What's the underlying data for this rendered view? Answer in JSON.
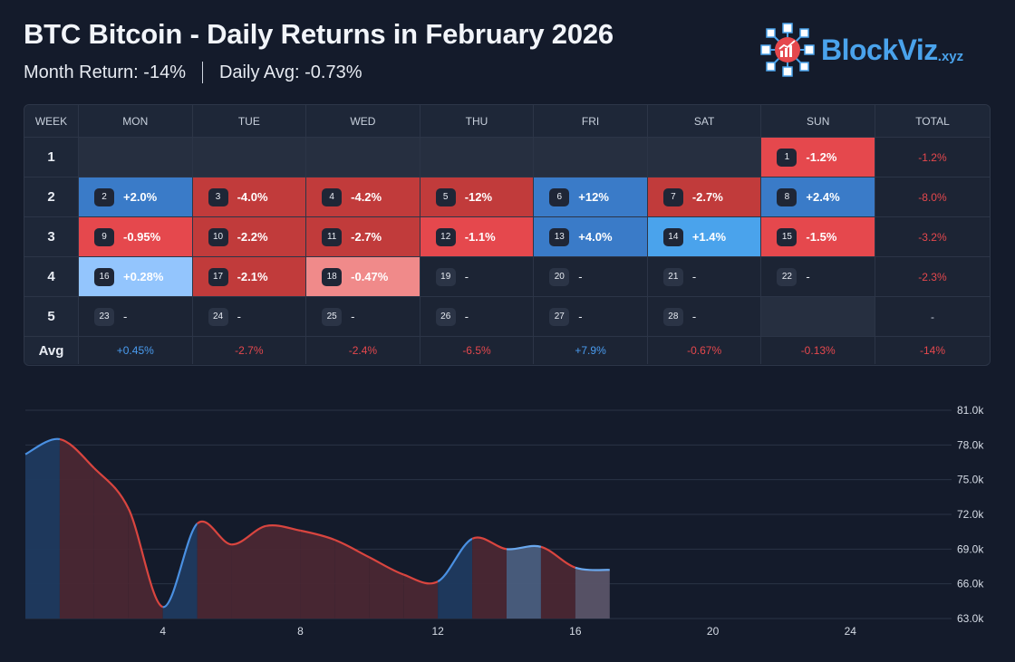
{
  "header": {
    "title": "BTC Bitcoin - Daily Returns in February 2026",
    "month_return": "Month Return: -14%",
    "daily_avg": "Daily Avg: -0.73%"
  },
  "logo": {
    "name": "BlockViz",
    "suffix": ".xyz",
    "icon": "cube-network-chart-icon"
  },
  "colors": {
    "strong_red": "#c13b3b",
    "red": "#e5484d",
    "light_red": "#f08a8a",
    "blue": "#3a7bc8",
    "light_blue": "#4aa3ec",
    "pale_blue": "#93c5fd",
    "positive_text": "#4a9cf0",
    "negative_text": "#e5484d",
    "background": "#141b2b"
  },
  "table": {
    "headers": [
      "WEEK",
      "MON",
      "TUE",
      "WED",
      "THU",
      "FRI",
      "SAT",
      "SUN",
      "TOTAL"
    ],
    "weeks": [
      {
        "label": "1",
        "total": "-1.2%",
        "total_sign": "neg",
        "days": [
          null,
          null,
          null,
          null,
          null,
          null,
          {
            "day": "1",
            "value": "-1.2%",
            "color": "red"
          }
        ]
      },
      {
        "label": "2",
        "total": "-8.0%",
        "total_sign": "neg",
        "days": [
          {
            "day": "2",
            "value": "+2.0%",
            "color": "blue"
          },
          {
            "day": "3",
            "value": "-4.0%",
            "color": "strong_red"
          },
          {
            "day": "4",
            "value": "-4.2%",
            "color": "strong_red"
          },
          {
            "day": "5",
            "value": "-12%",
            "color": "strong_red"
          },
          {
            "day": "6",
            "value": "+12%",
            "color": "blue"
          },
          {
            "day": "7",
            "value": "-2.7%",
            "color": "strong_red"
          },
          {
            "day": "8",
            "value": "+2.4%",
            "color": "blue"
          }
        ]
      },
      {
        "label": "3",
        "total": "-3.2%",
        "total_sign": "neg",
        "days": [
          {
            "day": "9",
            "value": "-0.95%",
            "color": "red"
          },
          {
            "day": "10",
            "value": "-2.2%",
            "color": "strong_red"
          },
          {
            "day": "11",
            "value": "-2.7%",
            "color": "strong_red"
          },
          {
            "day": "12",
            "value": "-1.1%",
            "color": "red"
          },
          {
            "day": "13",
            "value": "+4.0%",
            "color": "blue"
          },
          {
            "day": "14",
            "value": "+1.4%",
            "color": "light_blue"
          },
          {
            "day": "15",
            "value": "-1.5%",
            "color": "red"
          }
        ]
      },
      {
        "label": "4",
        "total": "-2.3%",
        "total_sign": "neg",
        "days": [
          {
            "day": "16",
            "value": "+0.28%",
            "color": "pale_blue"
          },
          {
            "day": "17",
            "value": "-2.1%",
            "color": "strong_red"
          },
          {
            "day": "18",
            "value": "-0.47%",
            "color": "light_red"
          },
          {
            "day": "19",
            "value": "-",
            "color": "none"
          },
          {
            "day": "20",
            "value": "-",
            "color": "none"
          },
          {
            "day": "21",
            "value": "-",
            "color": "none"
          },
          {
            "day": "22",
            "value": "-",
            "color": "none"
          }
        ]
      },
      {
        "label": "5",
        "total": "-",
        "total_sign": "none",
        "days": [
          {
            "day": "23",
            "value": "-",
            "color": "none"
          },
          {
            "day": "24",
            "value": "-",
            "color": "none"
          },
          {
            "day": "25",
            "value": "-",
            "color": "none"
          },
          {
            "day": "26",
            "value": "-",
            "color": "none"
          },
          {
            "day": "27",
            "value": "-",
            "color": "none"
          },
          {
            "day": "28",
            "value": "-",
            "color": "none"
          },
          null
        ]
      }
    ],
    "avg_row": {
      "label": "Avg",
      "values": [
        "+0.45%",
        "-2.7%",
        "-2.4%",
        "-6.5%",
        "+7.9%",
        "-0.67%",
        "-0.13%"
      ],
      "signs": [
        "pos",
        "neg",
        "neg",
        "neg",
        "pos",
        "neg",
        "neg"
      ],
      "total": "-14%"
    }
  },
  "chart_data": {
    "type": "area",
    "x_ticks": [
      "4",
      "8",
      "12",
      "16",
      "20",
      "24"
    ],
    "y_ticks": [
      "81.0k",
      "78.0k",
      "75.0k",
      "72.0k",
      "69.0k",
      "66.0k",
      "63.0k"
    ],
    "xlim": [
      0,
      28
    ],
    "ylim": [
      63000,
      81000
    ],
    "grid": true,
    "x": [
      0,
      1,
      2,
      3,
      4,
      5,
      6,
      7,
      8,
      9,
      10,
      11,
      12,
      13,
      14,
      15,
      16,
      17
    ],
    "y": [
      77200,
      78500,
      76000,
      72500,
      64000,
      71200,
      69400,
      71000,
      70600,
      69800,
      68300,
      66800,
      66200,
      69900,
      69000,
      69200,
      67400,
      67200
    ],
    "band_colors": [
      "blue",
      "red",
      "red",
      "red",
      "blue",
      "red",
      "red",
      "red",
      "red",
      "red",
      "red",
      "red",
      "blue",
      "red",
      "light_blue",
      "red",
      "pale_blue"
    ]
  }
}
